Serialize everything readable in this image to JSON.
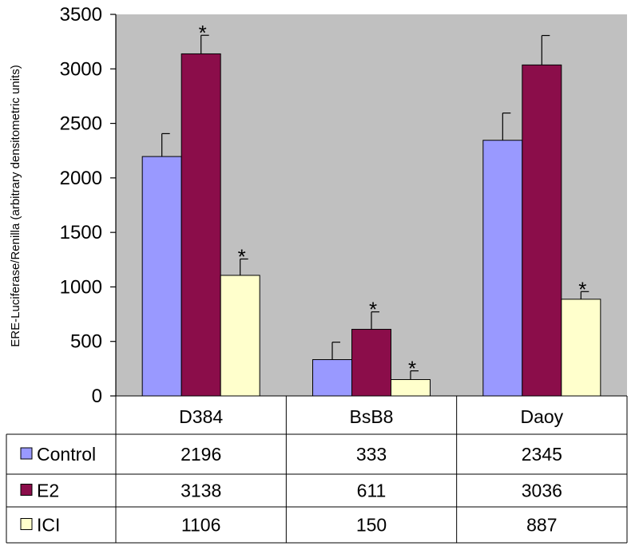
{
  "chart_data": {
    "type": "bar",
    "ylabel": "ERE-Luciferase/Renilla (arbitrary densitometric units)",
    "ylim": [
      0,
      3500
    ],
    "yticks": [
      0,
      500,
      1000,
      1500,
      2000,
      2500,
      3000,
      3500
    ],
    "categories": [
      "D384",
      "BsB8",
      "Daoy"
    ],
    "series": [
      {
        "name": "Control",
        "color": "#9999ff",
        "values": [
          2196,
          333,
          2345
        ],
        "errors": [
          210,
          160,
          250
        ],
        "significant": [
          false,
          false,
          false
        ]
      },
      {
        "name": "E2",
        "color": "#8b0d4a",
        "values": [
          3138,
          611,
          3036
        ],
        "errors": [
          170,
          160,
          270
        ],
        "significant": [
          true,
          true,
          false
        ]
      },
      {
        "name": "ICI",
        "color": "#ffffcc",
        "values": [
          1106,
          150,
          887
        ],
        "errors": [
          150,
          80,
          70
        ],
        "significant": [
          true,
          true,
          true
        ]
      }
    ],
    "significance_marker": "*",
    "grid": false,
    "plot_background": "#c0c0c0",
    "legend": "data-table"
  }
}
